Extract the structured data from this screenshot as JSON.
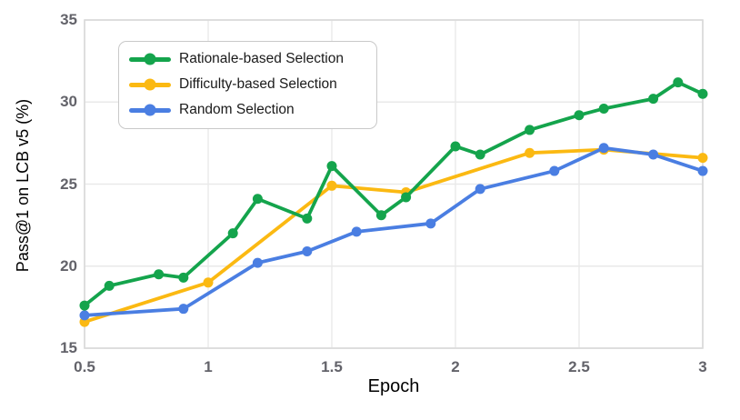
{
  "chart_data": {
    "type": "line",
    "title": "",
    "xlabel": "Epoch",
    "ylabel": "Pass@1 on LCB v5 (%)",
    "xlim": [
      0.5,
      3
    ],
    "ylim": [
      15,
      35
    ],
    "xticks": [
      0.5,
      1,
      1.5,
      2,
      2.5,
      3
    ],
    "xtick_labels": [
      "0.5",
      "1",
      "1.5",
      "2",
      "2.5",
      "3"
    ],
    "yticks": [
      15,
      20,
      25,
      30,
      35
    ],
    "ytick_labels": [
      "15",
      "20",
      "25",
      "30",
      "35"
    ],
    "grid": true,
    "legend_position": "top-left",
    "series": [
      {
        "name": "Rationale-based Selection",
        "color": "#14A44C",
        "x": [
          0.5,
          0.6,
          0.8,
          0.9,
          1.1,
          1.2,
          1.4,
          1.5,
          1.7,
          1.8,
          2.0,
          2.1,
          2.3,
          2.5,
          2.6,
          2.8,
          2.9,
          3.0
        ],
        "y": [
          17.6,
          18.8,
          19.5,
          19.3,
          22.0,
          24.1,
          22.9,
          26.1,
          23.1,
          24.2,
          27.3,
          26.8,
          28.3,
          29.2,
          29.6,
          30.2,
          31.2,
          30.5
        ]
      },
      {
        "name": "Difficulty-based Selection",
        "color": "#FBB912",
        "x": [
          0.5,
          1.0,
          1.5,
          1.8,
          2.3,
          2.6,
          3.0
        ],
        "y": [
          16.6,
          19.0,
          24.9,
          24.5,
          26.9,
          27.1,
          26.6
        ]
      },
      {
        "name": "Random Selection",
        "color": "#4A7EE2",
        "x": [
          0.5,
          0.9,
          1.2,
          1.4,
          1.6,
          1.9,
          2.1,
          2.4,
          2.6,
          2.8,
          3.0
        ],
        "y": [
          17.0,
          17.4,
          20.2,
          20.9,
          22.1,
          22.6,
          24.7,
          25.8,
          27.2,
          26.8,
          25.8
        ]
      }
    ],
    "colors": {
      "background": "#FFFFFF",
      "grid": "#E9E9E9",
      "frame": "#D9D9D9",
      "tick_label": "#63636A",
      "axis_label": "#000000",
      "legend_border": "#C9C9C9"
    }
  }
}
